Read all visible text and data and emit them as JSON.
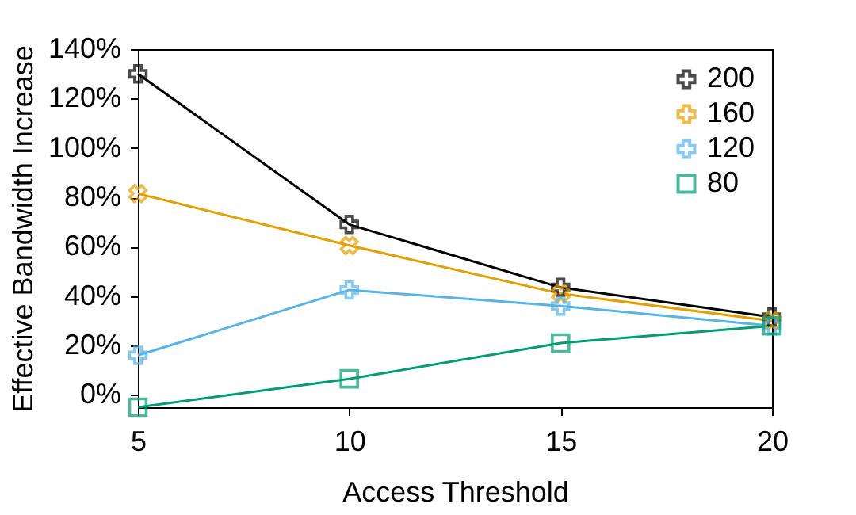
{
  "chart_data": {
    "type": "line",
    "xlabel": "Access Threshold",
    "ylabel": "Effective Bandwidth Increase",
    "x": [
      5,
      10,
      15,
      20
    ],
    "series": [
      {
        "name": "200",
        "color": "#000000",
        "marker": "cross",
        "values": [
          130,
          69,
          43.5,
          31.5
        ]
      },
      {
        "name": "160",
        "color": "#e69f00",
        "marker": "cross",
        "values": [
          81.5,
          60.5,
          41,
          30
        ]
      },
      {
        "name": "120",
        "color": "#56b4e9",
        "marker": "cross",
        "values": [
          16,
          42.5,
          36,
          28
        ]
      },
      {
        "name": "80",
        "color": "#009e73",
        "marker": "square",
        "values": [
          -5,
          6.5,
          21,
          28
        ]
      }
    ],
    "xlim": [
      5,
      20
    ],
    "xticks": [
      5,
      10,
      15,
      20
    ],
    "ylim": [
      -5,
      140
    ],
    "yticks": [
      {
        "value": 0,
        "label": "0%"
      },
      {
        "value": 20,
        "label": "20%"
      },
      {
        "value": 40,
        "label": "40%"
      },
      {
        "value": 60,
        "label": "60%"
      },
      {
        "value": 80,
        "label": "80%"
      },
      {
        "value": 100,
        "label": "100%"
      },
      {
        "value": 120,
        "label": "120%"
      },
      {
        "value": 140,
        "label": "140%"
      }
    ],
    "grid": false,
    "legend": "top right",
    "line_style": "solid"
  }
}
